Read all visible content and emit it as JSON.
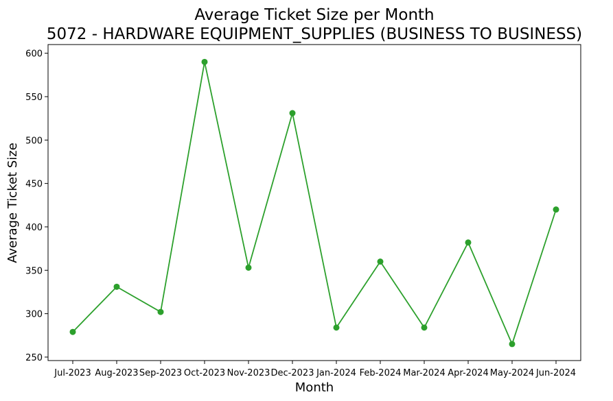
{
  "chart_data": {
    "type": "line",
    "title": "Average Ticket Size per Month",
    "subtitle": "5072 - HARDWARE EQUIPMENT_SUPPLIES (BUSINESS TO BUSINESS)",
    "xlabel": "Month",
    "ylabel": "Average Ticket Size",
    "categories": [
      "Jul-2023",
      "Aug-2023",
      "Sep-2023",
      "Oct-2023",
      "Nov-2023",
      "Dec-2023",
      "Jan-2024",
      "Feb-2024",
      "Mar-2024",
      "Apr-2024",
      "May-2024",
      "Jun-2024"
    ],
    "series": [
      {
        "values": [
          279,
          331,
          302,
          590,
          353,
          531,
          284,
          360,
          284,
          382,
          265,
          420
        ],
        "color": "#2ca02c"
      }
    ],
    "ylim": [
      246,
      610
    ],
    "yticks": [
      250,
      300,
      350,
      400,
      450,
      500,
      550,
      600
    ],
    "grid": false,
    "legend": "none"
  }
}
